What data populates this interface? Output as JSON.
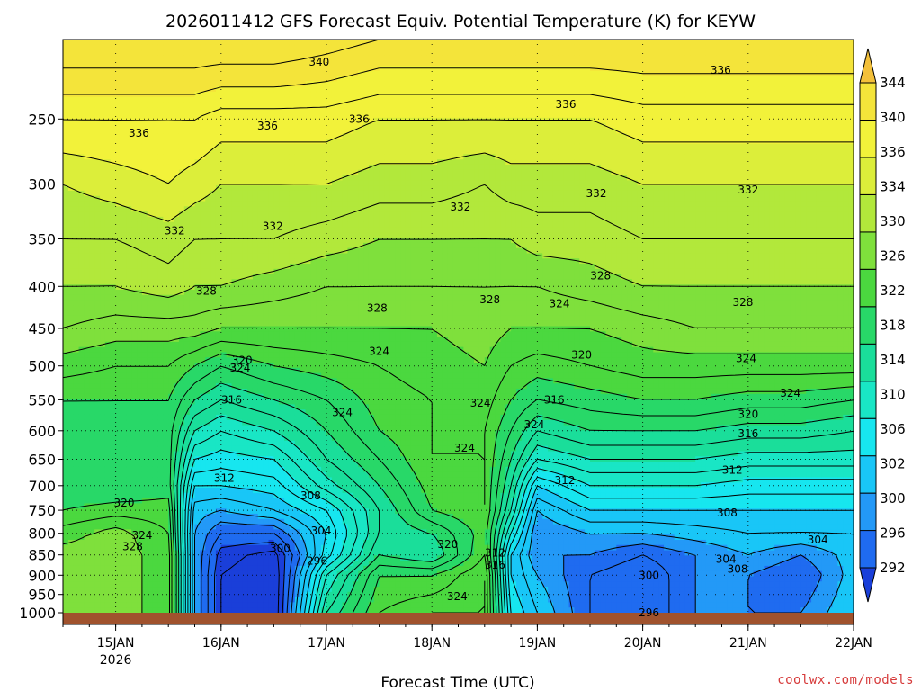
{
  "chart_data": {
    "type": "contour",
    "title": "2026011412 GFS Forecast Equiv. Potential Temperature (K) for KEYW",
    "xlabel": "Forecast Time (UTC)",
    "ylabel": "",
    "credit": "coolwx.com/models",
    "x_ticks": [
      {
        "label": "15JAN",
        "sub": "2026",
        "day": 15
      },
      {
        "label": "16JAN",
        "sub": "",
        "day": 16
      },
      {
        "label": "17JAN",
        "sub": "",
        "day": 17
      },
      {
        "label": "18JAN",
        "sub": "",
        "day": 18
      },
      {
        "label": "19JAN",
        "sub": "",
        "day": 19
      },
      {
        "label": "20JAN",
        "sub": "",
        "day": 20
      },
      {
        "label": "21JAN",
        "sub": "",
        "day": 21
      },
      {
        "label": "22JAN",
        "sub": "",
        "day": 22
      }
    ],
    "xlim_days": [
      14.5,
      22.0
    ],
    "y_axis": "pressure (hPa), reversed, log-scaled",
    "ylim": [
      1000,
      200
    ],
    "y_ticks": [
      250,
      300,
      350,
      400,
      450,
      500,
      550,
      600,
      650,
      700,
      750,
      800,
      850,
      900,
      950,
      1000
    ],
    "grid": true,
    "colorbar": {
      "levels": [
        292,
        296,
        300,
        302,
        306,
        310,
        314,
        318,
        322,
        326,
        330,
        334,
        336,
        340,
        344
      ],
      "colors": [
        "#1a3fd9",
        "#1f6bf0",
        "#2399f7",
        "#19c6f7",
        "#17e6ef",
        "#19e6c5",
        "#1ade9a",
        "#28d868",
        "#4bd83f",
        "#7fe03c",
        "#b2e83b",
        "#dcee3a",
        "#f2f23a",
        "#f4e43a",
        "#f3c03a"
      ]
    },
    "profiles": [
      {
        "day": 14.5,
        "theta": [
          344,
          338,
          334,
          332,
          330,
          328,
          325,
          322,
          321,
          320,
          320,
          322,
          325,
          327,
          327,
          327
        ]
      },
      {
        "day": 15.0,
        "theta": [
          344,
          338,
          335,
          332,
          330,
          327,
          324,
          322,
          321,
          320,
          320,
          323,
          327,
          327,
          327,
          327
        ]
      },
      {
        "day": 15.5,
        "theta": [
          344,
          338,
          336,
          333,
          331,
          327,
          324,
          322,
          321,
          321,
          321,
          323,
          324,
          325,
          325,
          325
        ]
      },
      {
        "day": 15.75,
        "theta": [
          344,
          338,
          335,
          332,
          330,
          327,
          322,
          318,
          314,
          310,
          306,
          303,
          302,
          302,
          302,
          302
        ]
      },
      {
        "day": 16.0,
        "theta": [
          344,
          337,
          334,
          332,
          330,
          326,
          320,
          316,
          312,
          309,
          306,
          302,
          298,
          295,
          294,
          294
        ]
      },
      {
        "day": 16.5,
        "theta": [
          344,
          337,
          334,
          332,
          329,
          326,
          322,
          318,
          314,
          310,
          307,
          304,
          298,
          293,
          292,
          292
        ]
      },
      {
        "day": 17.0,
        "theta": [
          343,
          337,
          334,
          331,
          328,
          326,
          323,
          320,
          318,
          316,
          313,
          308,
          306,
          307,
          312,
          316
        ]
      },
      {
        "day": 17.5,
        "theta": [
          342,
          336,
          333,
          330,
          328,
          326,
          324,
          323,
          322,
          320,
          318,
          316,
          316,
          318,
          322,
          324
        ]
      },
      {
        "day": 18.0,
        "theta": [
          342,
          336,
          333,
          330,
          328,
          326,
          325,
          324,
          324,
          324,
          323,
          322,
          318,
          316,
          322,
          326
        ]
      },
      {
        "day": 18.5,
        "theta": [
          342,
          336,
          332,
          330,
          328,
          327,
          326,
          325,
          324,
          324,
          324,
          324,
          323,
          324,
          326,
          326
        ]
      },
      {
        "day": 18.75,
        "theta": [
          342,
          336,
          333,
          330,
          328,
          326,
          324,
          322,
          320,
          318,
          316,
          314,
          310,
          306,
          306,
          308
        ]
      },
      {
        "day": 19.0,
        "theta": [
          342,
          336,
          333,
          331,
          328,
          326,
          323,
          320,
          316,
          312,
          306,
          302,
          300,
          300,
          302,
          304
        ]
      },
      {
        "day": 19.5,
        "theta": [
          342,
          336,
          333,
          331,
          329,
          326,
          324,
          321,
          318,
          314,
          310,
          306,
          302,
          300,
          298,
          298
        ]
      },
      {
        "day": 20.0,
        "theta": [
          342,
          337,
          334,
          332,
          330,
          327,
          325,
          322,
          318,
          314,
          310,
          306,
          302,
          298,
          296,
          296
        ]
      },
      {
        "day": 20.5,
        "theta": [
          342,
          337,
          334,
          332,
          330,
          328,
          325,
          322,
          318,
          314,
          310,
          306,
          303,
          300,
          300,
          300
        ]
      },
      {
        "day": 21.0,
        "theta": [
          342,
          337,
          334,
          332,
          330,
          328,
          325,
          321,
          317,
          313,
          309,
          306,
          304,
          302,
          300,
          300
        ]
      },
      {
        "day": 21.5,
        "theta": [
          342,
          337,
          334,
          332,
          330,
          328,
          325,
          321,
          317,
          313,
          309,
          306,
          304,
          300,
          298,
          300
        ]
      },
      {
        "day": 22.0,
        "theta": [
          342,
          337,
          334,
          332,
          330,
          328,
          325,
          320,
          316,
          313,
          309,
          306,
          304,
          303,
          303,
          304
        ]
      }
    ],
    "contour_labels": [
      {
        "text": "340",
        "day": 16.93,
        "p": 213
      },
      {
        "text": "336",
        "day": 15.22,
        "p": 260
      },
      {
        "text": "336",
        "day": 16.44,
        "p": 255
      },
      {
        "text": "336",
        "day": 17.31,
        "p": 250
      },
      {
        "text": "336",
        "day": 19.27,
        "p": 240
      },
      {
        "text": "336",
        "day": 20.74,
        "p": 218
      },
      {
        "text": "332",
        "day": 15.56,
        "p": 342
      },
      {
        "text": "332",
        "day": 16.49,
        "p": 338
      },
      {
        "text": "332",
        "day": 18.27,
        "p": 320
      },
      {
        "text": "332",
        "day": 19.56,
        "p": 308
      },
      {
        "text": "332",
        "day": 21.0,
        "p": 305
      },
      {
        "text": "328",
        "day": 15.86,
        "p": 405
      },
      {
        "text": "328",
        "day": 17.48,
        "p": 425
      },
      {
        "text": "328",
        "day": 18.55,
        "p": 415
      },
      {
        "text": "328",
        "day": 19.6,
        "p": 388
      },
      {
        "text": "328",
        "day": 20.95,
        "p": 418
      },
      {
        "text": "324",
        "day": 16.18,
        "p": 503
      },
      {
        "text": "324",
        "day": 17.5,
        "p": 480
      },
      {
        "text": "324",
        "day": 19.21,
        "p": 420
      },
      {
        "text": "324",
        "day": 20.98,
        "p": 490
      },
      {
        "text": "324",
        "day": 21.4,
        "p": 540
      },
      {
        "text": "324",
        "day": 17.15,
        "p": 570
      },
      {
        "text": "324",
        "day": 18.46,
        "p": 555
      },
      {
        "text": "324",
        "day": 18.97,
        "p": 590
      },
      {
        "text": "324",
        "day": 18.31,
        "p": 630
      },
      {
        "text": "324",
        "day": 15.25,
        "p": 805
      },
      {
        "text": "324",
        "day": 18.24,
        "p": 955
      },
      {
        "text": "320",
        "day": 16.2,
        "p": 492
      },
      {
        "text": "320",
        "day": 19.42,
        "p": 485
      },
      {
        "text": "320",
        "day": 21.0,
        "p": 573
      },
      {
        "text": "320",
        "day": 15.08,
        "p": 735
      },
      {
        "text": "320",
        "day": 18.15,
        "p": 825
      },
      {
        "text": "316",
        "day": 16.1,
        "p": 550
      },
      {
        "text": "316",
        "day": 19.16,
        "p": 550
      },
      {
        "text": "316",
        "day": 21.0,
        "p": 605
      },
      {
        "text": "316",
        "day": 18.6,
        "p": 875
      },
      {
        "text": "312",
        "day": 16.03,
        "p": 685
      },
      {
        "text": "312",
        "day": 19.26,
        "p": 690
      },
      {
        "text": "312",
        "day": 20.85,
        "p": 670
      },
      {
        "text": "312",
        "day": 18.6,
        "p": 845
      },
      {
        "text": "308",
        "day": 16.85,
        "p": 720
      },
      {
        "text": "308",
        "day": 20.8,
        "p": 755
      },
      {
        "text": "308",
        "day": 20.9,
        "p": 885
      },
      {
        "text": "304",
        "day": 16.95,
        "p": 795
      },
      {
        "text": "304",
        "day": 20.79,
        "p": 860
      },
      {
        "text": "304",
        "day": 21.66,
        "p": 815
      },
      {
        "text": "300",
        "day": 16.56,
        "p": 835
      },
      {
        "text": "300",
        "day": 20.06,
        "p": 900
      },
      {
        "text": "296",
        "day": 16.91,
        "p": 865
      },
      {
        "text": "296",
        "day": 20.06,
        "p": 1000
      },
      {
        "text": "328",
        "day": 15.16,
        "p": 830
      }
    ]
  }
}
